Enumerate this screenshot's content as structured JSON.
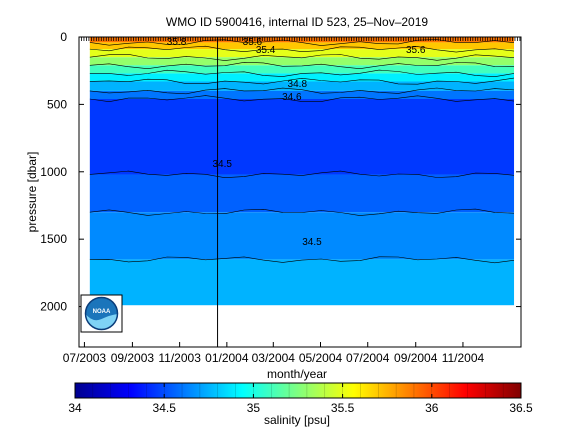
{
  "figure": {
    "title": "WMO ID 5900416, internal ID 523, 25–Nov–2019",
    "xlabel": "month/year",
    "ylabel": "pressure [dbar]",
    "colorbar_label": "salinity [psu]",
    "logo": "NOAA",
    "logo_icon": "noaa-logo-icon"
  },
  "chart_data": {
    "type": "heatmap",
    "title": "WMO ID 5900416, internal ID 523, 25–Nov–2019",
    "xlabel": "month/year",
    "ylabel": "pressure [dbar]",
    "x_ticks": [
      "07/2003",
      "09/2003",
      "11/2003",
      "01/2004",
      "03/2004",
      "05/2004",
      "07/2004",
      "09/2004",
      "11/2004"
    ],
    "x_tick_dates": [
      "2003-07-01",
      "2003-09-01",
      "2003-11-01",
      "2004-01-01",
      "2004-03-01",
      "2004-05-01",
      "2004-07-01",
      "2004-09-01",
      "2004-11-01"
    ],
    "x_range": [
      "2003-06-24",
      "2005-01-15"
    ],
    "data_x_range": [
      "2003-07-08",
      "2005-01-06"
    ],
    "y_ticks": [
      0,
      500,
      1000,
      1500,
      2000
    ],
    "y_range": [
      0,
      2300
    ],
    "y_reversed": true,
    "vertical_marker_date": "2003-12-20",
    "colorbar": {
      "ticks": [
        34,
        34.5,
        35,
        35.5,
        36,
        36.5
      ],
      "range": [
        34,
        36.5
      ],
      "label": "salinity [psu]",
      "levels": 25
    },
    "contour_labels": [
      "35.8",
      "35.6",
      "35.4",
      "34.8",
      "34.6",
      "34.5",
      "34.5",
      "35.6"
    ],
    "bands": [
      {
        "top_dbar": 0,
        "bottom_dbar": 40,
        "salinity": 35.9
      },
      {
        "top_dbar": 40,
        "bottom_dbar": 90,
        "salinity": 35.7
      },
      {
        "top_dbar": 90,
        "bottom_dbar": 150,
        "salinity": 35.5
      },
      {
        "top_dbar": 150,
        "bottom_dbar": 210,
        "salinity": 35.3
      },
      {
        "top_dbar": 210,
        "bottom_dbar": 270,
        "salinity": 35.1
      },
      {
        "top_dbar": 270,
        "bottom_dbar": 330,
        "salinity": 34.9
      },
      {
        "top_dbar": 330,
        "bottom_dbar": 400,
        "salinity": 34.75
      },
      {
        "top_dbar": 400,
        "bottom_dbar": 460,
        "salinity": 34.6
      },
      {
        "top_dbar": 460,
        "bottom_dbar": 1020,
        "salinity": 34.45
      },
      {
        "top_dbar": 1020,
        "bottom_dbar": 1300,
        "salinity": 34.55
      },
      {
        "top_dbar": 1300,
        "bottom_dbar": 1650,
        "salinity": 34.65
      },
      {
        "top_dbar": 1650,
        "bottom_dbar": 1990,
        "salinity": 34.75
      }
    ]
  }
}
